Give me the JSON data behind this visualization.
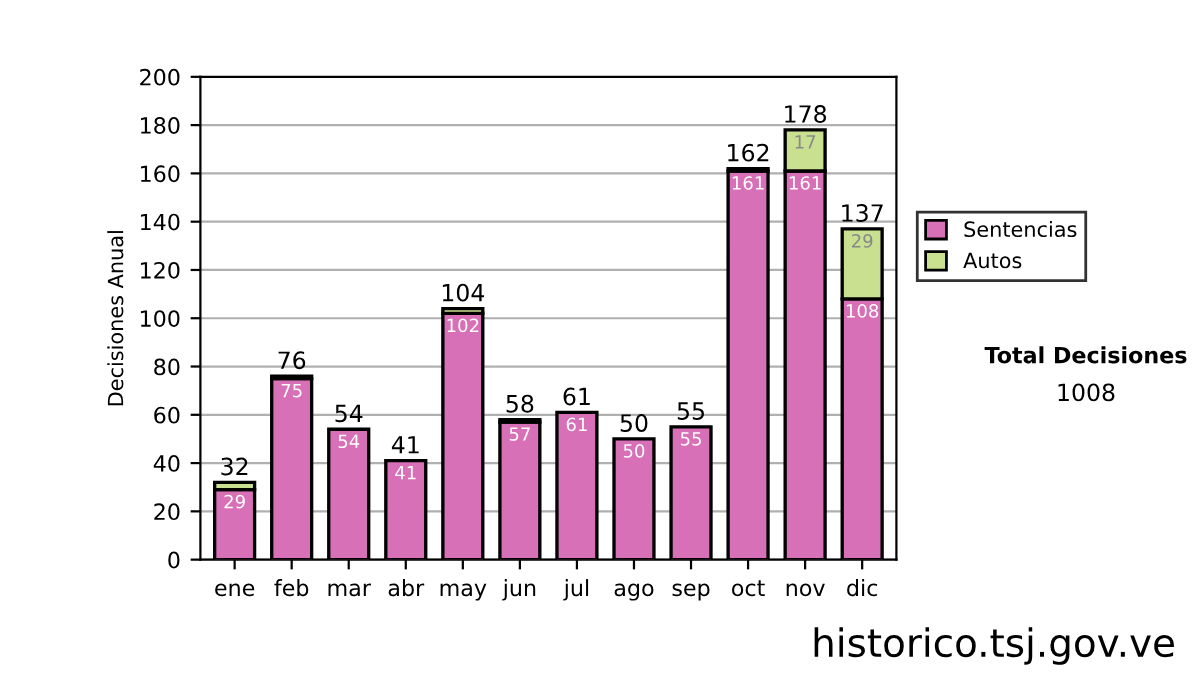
{
  "chart_data": {
    "type": "bar",
    "stacked": true,
    "ylabel": "Decisiones Anual",
    "categories": [
      "ene",
      "feb",
      "mar",
      "abr",
      "may",
      "jun",
      "jul",
      "ago",
      "sep",
      "oct",
      "nov",
      "dic"
    ],
    "series": [
      {
        "name": "Sentencias",
        "color": "#d870b8",
        "values": [
          29,
          75,
          54,
          41,
          102,
          57,
          61,
          50,
          55,
          161,
          161,
          108
        ],
        "value_labels": [
          "29",
          "75",
          "54",
          "41",
          "102",
          "57",
          "61",
          "50",
          "55",
          "161",
          "161",
          "108"
        ]
      },
      {
        "name": "Autos",
        "color": "#c8e090",
        "values": [
          3,
          1,
          null,
          null,
          2,
          1,
          null,
          null,
          null,
          1,
          17,
          29
        ],
        "value_labels": [
          null,
          null,
          null,
          null,
          null,
          null,
          null,
          null,
          null,
          null,
          "17",
          "29"
        ]
      }
    ],
    "totals": [
      "32",
      "76",
      "54",
      "41",
      "104",
      "58",
      "61",
      "50",
      "55",
      "162",
      "178",
      "137"
    ],
    "ylim": [
      0,
      200
    ],
    "yticks": [
      0,
      20,
      40,
      60,
      80,
      100,
      120,
      140,
      160,
      180,
      200
    ],
    "grid": "y",
    "legend": "right",
    "annotations": [
      "Total Decisiones",
      "1008",
      "historico.tsj.gov.ve"
    ]
  }
}
